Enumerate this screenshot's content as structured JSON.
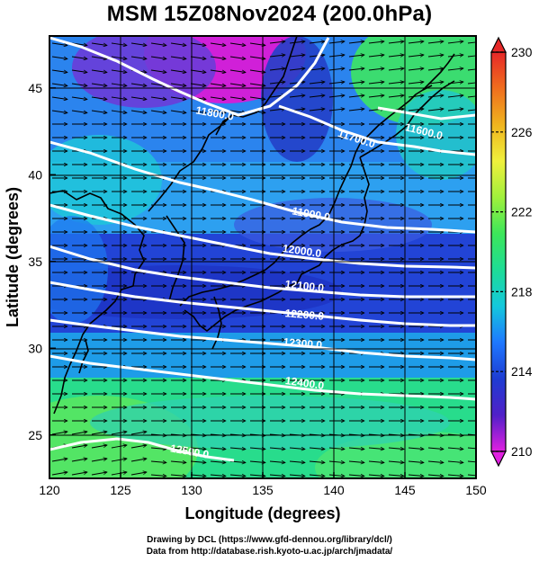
{
  "title": "MSM 15Z08Nov2024 (200.0hPa)",
  "map": {
    "lon_range": [
      120,
      150
    ],
    "lat_range": [
      22.5,
      48
    ],
    "x_ticks": [
      120,
      125,
      130,
      135,
      140,
      145,
      150
    ],
    "x_tick_labels": [
      "120",
      "125",
      "130",
      "135",
      "140",
      "145",
      "150"
    ],
    "y_ticks": [
      25,
      30,
      35,
      40,
      45
    ],
    "y_tick_labels": [
      "25",
      "30",
      "35",
      "40",
      "45"
    ],
    "xlabel": "Longitude (degrees)",
    "ylabel": "Latitude  (degrees)",
    "grid": true,
    "coastline_color": "#000000",
    "vector_color": "#000000",
    "contour_color": "#ffffff"
  },
  "contours": [
    {
      "label": "11800.0"
    },
    {
      "label": "11700.0"
    },
    {
      "label": "11600.0"
    },
    {
      "label": "11900.0"
    },
    {
      "label": "12000.0"
    },
    {
      "label": "12100.0"
    },
    {
      "label": "12200.0"
    },
    {
      "label": "12300.0"
    },
    {
      "label": "12400.0"
    },
    {
      "label": "12500.0"
    }
  ],
  "colorbar": {
    "min": 210,
    "max": 230,
    "ticks": [
      210,
      214,
      218,
      222,
      226,
      230
    ],
    "tick_labels": [
      "210",
      "214",
      "218",
      "222",
      "226",
      "230"
    ],
    "colors": [
      "#e020e0",
      "#5020c8",
      "#1e3cd2",
      "#1e78ff",
      "#14c8dc",
      "#1edc96",
      "#3ce65a",
      "#a0f03c",
      "#f0f03c",
      "#f0b41e",
      "#f06e1e",
      "#e62828"
    ]
  },
  "credits": {
    "line1": "Drawing by DCL (https://www.gfd-dennou.org/library/dcl/)",
    "line2": "Data from http://database.rish.kyoto-u.ac.jp/arch/jmadata/"
  }
}
